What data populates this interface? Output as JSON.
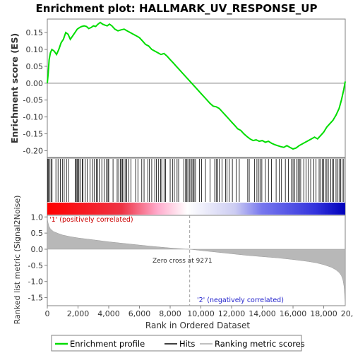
{
  "chart_data": [
    {
      "type": "line",
      "title": "Enrichment plot: HALLMARK_UV_RESPONSE_UP",
      "ylabel": "Enrichment score (ES)",
      "ylim": [
        -0.22,
        0.19
      ],
      "yticks": [
        0.15,
        0.1,
        0.05,
        0.0,
        -0.05,
        -0.1,
        -0.15,
        -0.2
      ],
      "ytick_labels": [
        "0.15",
        "0.10",
        "0.05",
        "0.00",
        "-0.05",
        "-0.10",
        "-0.15",
        "-0.20"
      ],
      "series": [
        {
          "name": "Enrichment profile",
          "color": "#00dd00",
          "x": [
            0,
            60,
            120,
            200,
            300,
            450,
            600,
            750,
            900,
            1050,
            1200,
            1350,
            1500,
            1650,
            1800,
            1950,
            2100,
            2250,
            2400,
            2550,
            2700,
            2850,
            3000,
            3150,
            3300,
            3450,
            3600,
            3750,
            3900,
            4050,
            4200,
            4400,
            4600,
            4800,
            5000,
            5200,
            5400,
            5600,
            5800,
            6000,
            6200,
            6400,
            6600,
            6800,
            7000,
            7200,
            7400,
            7600,
            7800,
            8000,
            8200,
            8400,
            8600,
            8800,
            9000,
            9200,
            9400,
            9600,
            9800,
            10000,
            10200,
            10400,
            10600,
            10800,
            11000,
            11200,
            11400,
            11600,
            11800,
            12000,
            12200,
            12400,
            12600,
            12800,
            13000,
            13200,
            13400,
            13600,
            13800,
            14000,
            14200,
            14400,
            14600,
            14800,
            15000,
            15200,
            15400,
            15600,
            15800,
            16000,
            16200,
            16400,
            16600,
            16800,
            17000,
            17200,
            17400,
            17600,
            17800,
            18000,
            18200,
            18400,
            18600,
            18800,
            19000,
            19150,
            19300,
            19400
          ],
          "y": [
            0.0,
            0.03,
            0.07,
            0.09,
            0.1,
            0.095,
            0.085,
            0.1,
            0.12,
            0.13,
            0.15,
            0.145,
            0.13,
            0.14,
            0.15,
            0.16,
            0.165,
            0.168,
            0.17,
            0.168,
            0.162,
            0.165,
            0.17,
            0.168,
            0.175,
            0.18,
            0.175,
            0.172,
            0.17,
            0.175,
            0.17,
            0.16,
            0.155,
            0.158,
            0.16,
            0.155,
            0.15,
            0.145,
            0.14,
            0.135,
            0.125,
            0.115,
            0.11,
            0.1,
            0.095,
            0.09,
            0.085,
            0.088,
            0.08,
            0.07,
            0.06,
            0.05,
            0.04,
            0.03,
            0.02,
            0.01,
            0.0,
            -0.01,
            -0.02,
            -0.03,
            -0.04,
            -0.05,
            -0.06,
            -0.068,
            -0.07,
            -0.075,
            -0.085,
            -0.095,
            -0.105,
            -0.115,
            -0.125,
            -0.135,
            -0.14,
            -0.15,
            -0.158,
            -0.165,
            -0.17,
            -0.168,
            -0.172,
            -0.17,
            -0.175,
            -0.172,
            -0.178,
            -0.182,
            -0.185,
            -0.188,
            -0.19,
            -0.185,
            -0.19,
            -0.195,
            -0.192,
            -0.185,
            -0.18,
            -0.175,
            -0.17,
            -0.165,
            -0.16,
            -0.165,
            -0.155,
            -0.145,
            -0.13,
            -0.12,
            -0.11,
            -0.095,
            -0.075,
            -0.05,
            -0.02,
            0.005
          ]
        }
      ]
    },
    {
      "type": "scatter",
      "name": "Hits",
      "positions": [
        20,
        70,
        150,
        240,
        310,
        560,
        700,
        850,
        980,
        1100,
        1250,
        1380,
        1820,
        1880,
        1940,
        2000,
        2060,
        2150,
        2270,
        2320,
        2470,
        2600,
        2780,
        2950,
        3050,
        3200,
        3280,
        3380,
        3550,
        3700,
        3850,
        3950,
        4000,
        4280,
        4550,
        4650,
        4760,
        4830,
        4900,
        5000,
        5100,
        5170,
        5300,
        5450,
        5750,
        5900,
        6150,
        6300,
        6550,
        6650,
        6800,
        7000,
        7100,
        7250,
        7380,
        7450,
        7600,
        7700,
        8000,
        8150,
        8270,
        8450,
        8550,
        8900,
        9000,
        9080,
        9150,
        9250,
        9340,
        9420,
        9500,
        9560,
        9650,
        9900,
        10050,
        10300,
        10600,
        10900,
        11000,
        11100,
        11200,
        11380,
        11600,
        11700,
        11850,
        12050,
        12300,
        12500,
        13050,
        13150,
        13500,
        13650,
        13780,
        13860,
        13970,
        14200,
        14400,
        14600,
        14900,
        15100,
        15250,
        15500,
        15700,
        15900,
        16000,
        16100,
        16250,
        16330,
        16420,
        16500,
        16700,
        16850,
        17000,
        17150,
        17350,
        17500,
        17700,
        17800,
        17900,
        18000,
        18100,
        18200,
        18300,
        18450,
        18550,
        18650,
        18800,
        18900,
        19000,
        19100,
        19200,
        19300
      ]
    },
    {
      "type": "area",
      "ylabel": "Ranked list metric (Signal2Noise)",
      "xlabel": "Rank in Ordered Dataset",
      "xlim": [
        0,
        19400
      ],
      "xticks": [
        0,
        2000,
        4000,
        6000,
        8000,
        10000,
        12000,
        14000,
        16000,
        18000,
        20000
      ],
      "xtick_labels": [
        "0",
        "2,000",
        "4,000",
        "6,000",
        "8,000",
        "10,000",
        "12,000",
        "14,000",
        "16,000",
        "18,000",
        "20,000"
      ],
      "ylim": [
        -1.75,
        1.05
      ],
      "yticks": [
        1.0,
        0.5,
        0.0,
        -0.5,
        -1.0,
        -1.5
      ],
      "ytick_labels": [
        "1.0",
        "0.5",
        "0.0",
        "-0.5",
        "-1.0",
        "-1.5"
      ],
      "series": [
        {
          "name": "Ranking metric scores",
          "color": "#c0c0c0",
          "x": [
            0,
            30,
            100,
            200,
            400,
            700,
            1000,
            1500,
            2000,
            3000,
            4000,
            5000,
            6000,
            7000,
            8000,
            9000,
            9271,
            10000,
            11000,
            12000,
            13000,
            14000,
            15000,
            16000,
            17000,
            17500,
            18000,
            18500,
            18800,
            19000,
            19150,
            19250,
            19320,
            19370,
            19400
          ],
          "y": [
            0.98,
            0.85,
            0.72,
            0.63,
            0.55,
            0.49,
            0.44,
            0.39,
            0.35,
            0.29,
            0.23,
            0.18,
            0.13,
            0.08,
            0.04,
            0.005,
            0.0,
            -0.04,
            -0.09,
            -0.14,
            -0.19,
            -0.23,
            -0.27,
            -0.32,
            -0.38,
            -0.42,
            -0.48,
            -0.56,
            -0.64,
            -0.72,
            -0.82,
            -0.95,
            -1.15,
            -1.45,
            -1.75
          ]
        }
      ],
      "annotations": [
        "'1' (positively correlated)",
        "Zero cross at 9271",
        "'2' (negatively correlated)"
      ],
      "zero_cross": 9271
    }
  ],
  "legend": {
    "items": [
      {
        "label": "Enrichment profile",
        "color": "#00dd00"
      },
      {
        "label": "Hits",
        "color": "#000000"
      },
      {
        "label": "Ranking metric scores",
        "color": "#c0c0c0"
      }
    ]
  }
}
